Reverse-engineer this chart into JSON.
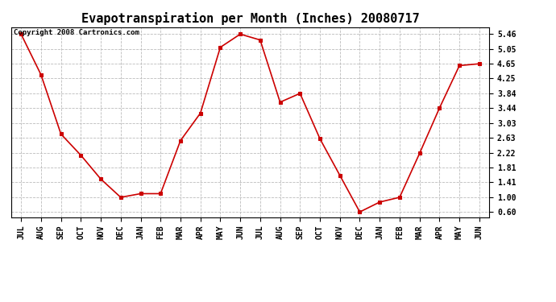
{
  "title": "Evapotranspiration per Month (Inches) 20080717",
  "copyright": "Copyright 2008 Cartronics.com",
  "months": [
    "JUL",
    "AUG",
    "SEP",
    "OCT",
    "NOV",
    "DEC",
    "JAN",
    "FEB",
    "MAR",
    "APR",
    "MAY",
    "JUN",
    "JUL",
    "AUG",
    "SEP",
    "OCT",
    "NOV",
    "DEC",
    "JAN",
    "FEB",
    "MAR",
    "APR",
    "MAY",
    "JUN"
  ],
  "values": [
    5.46,
    4.35,
    2.73,
    2.15,
    1.5,
    1.0,
    1.1,
    1.1,
    2.55,
    3.3,
    5.1,
    5.46,
    5.3,
    3.6,
    3.84,
    2.6,
    1.6,
    0.6,
    0.87,
    1.0,
    2.2,
    3.44,
    4.6,
    4.65
  ],
  "line_color": "#cc0000",
  "marker": "s",
  "marker_size": 3,
  "marker_color": "#cc0000",
  "bg_color": "#ffffff",
  "grid_color": "#bbbbbb",
  "yticks": [
    0.6,
    1.0,
    1.41,
    1.81,
    2.22,
    2.63,
    3.03,
    3.44,
    3.84,
    4.25,
    4.65,
    5.05,
    5.46
  ],
  "title_fontsize": 11,
  "tick_fontsize": 7,
  "copyright_fontsize": 6.5
}
